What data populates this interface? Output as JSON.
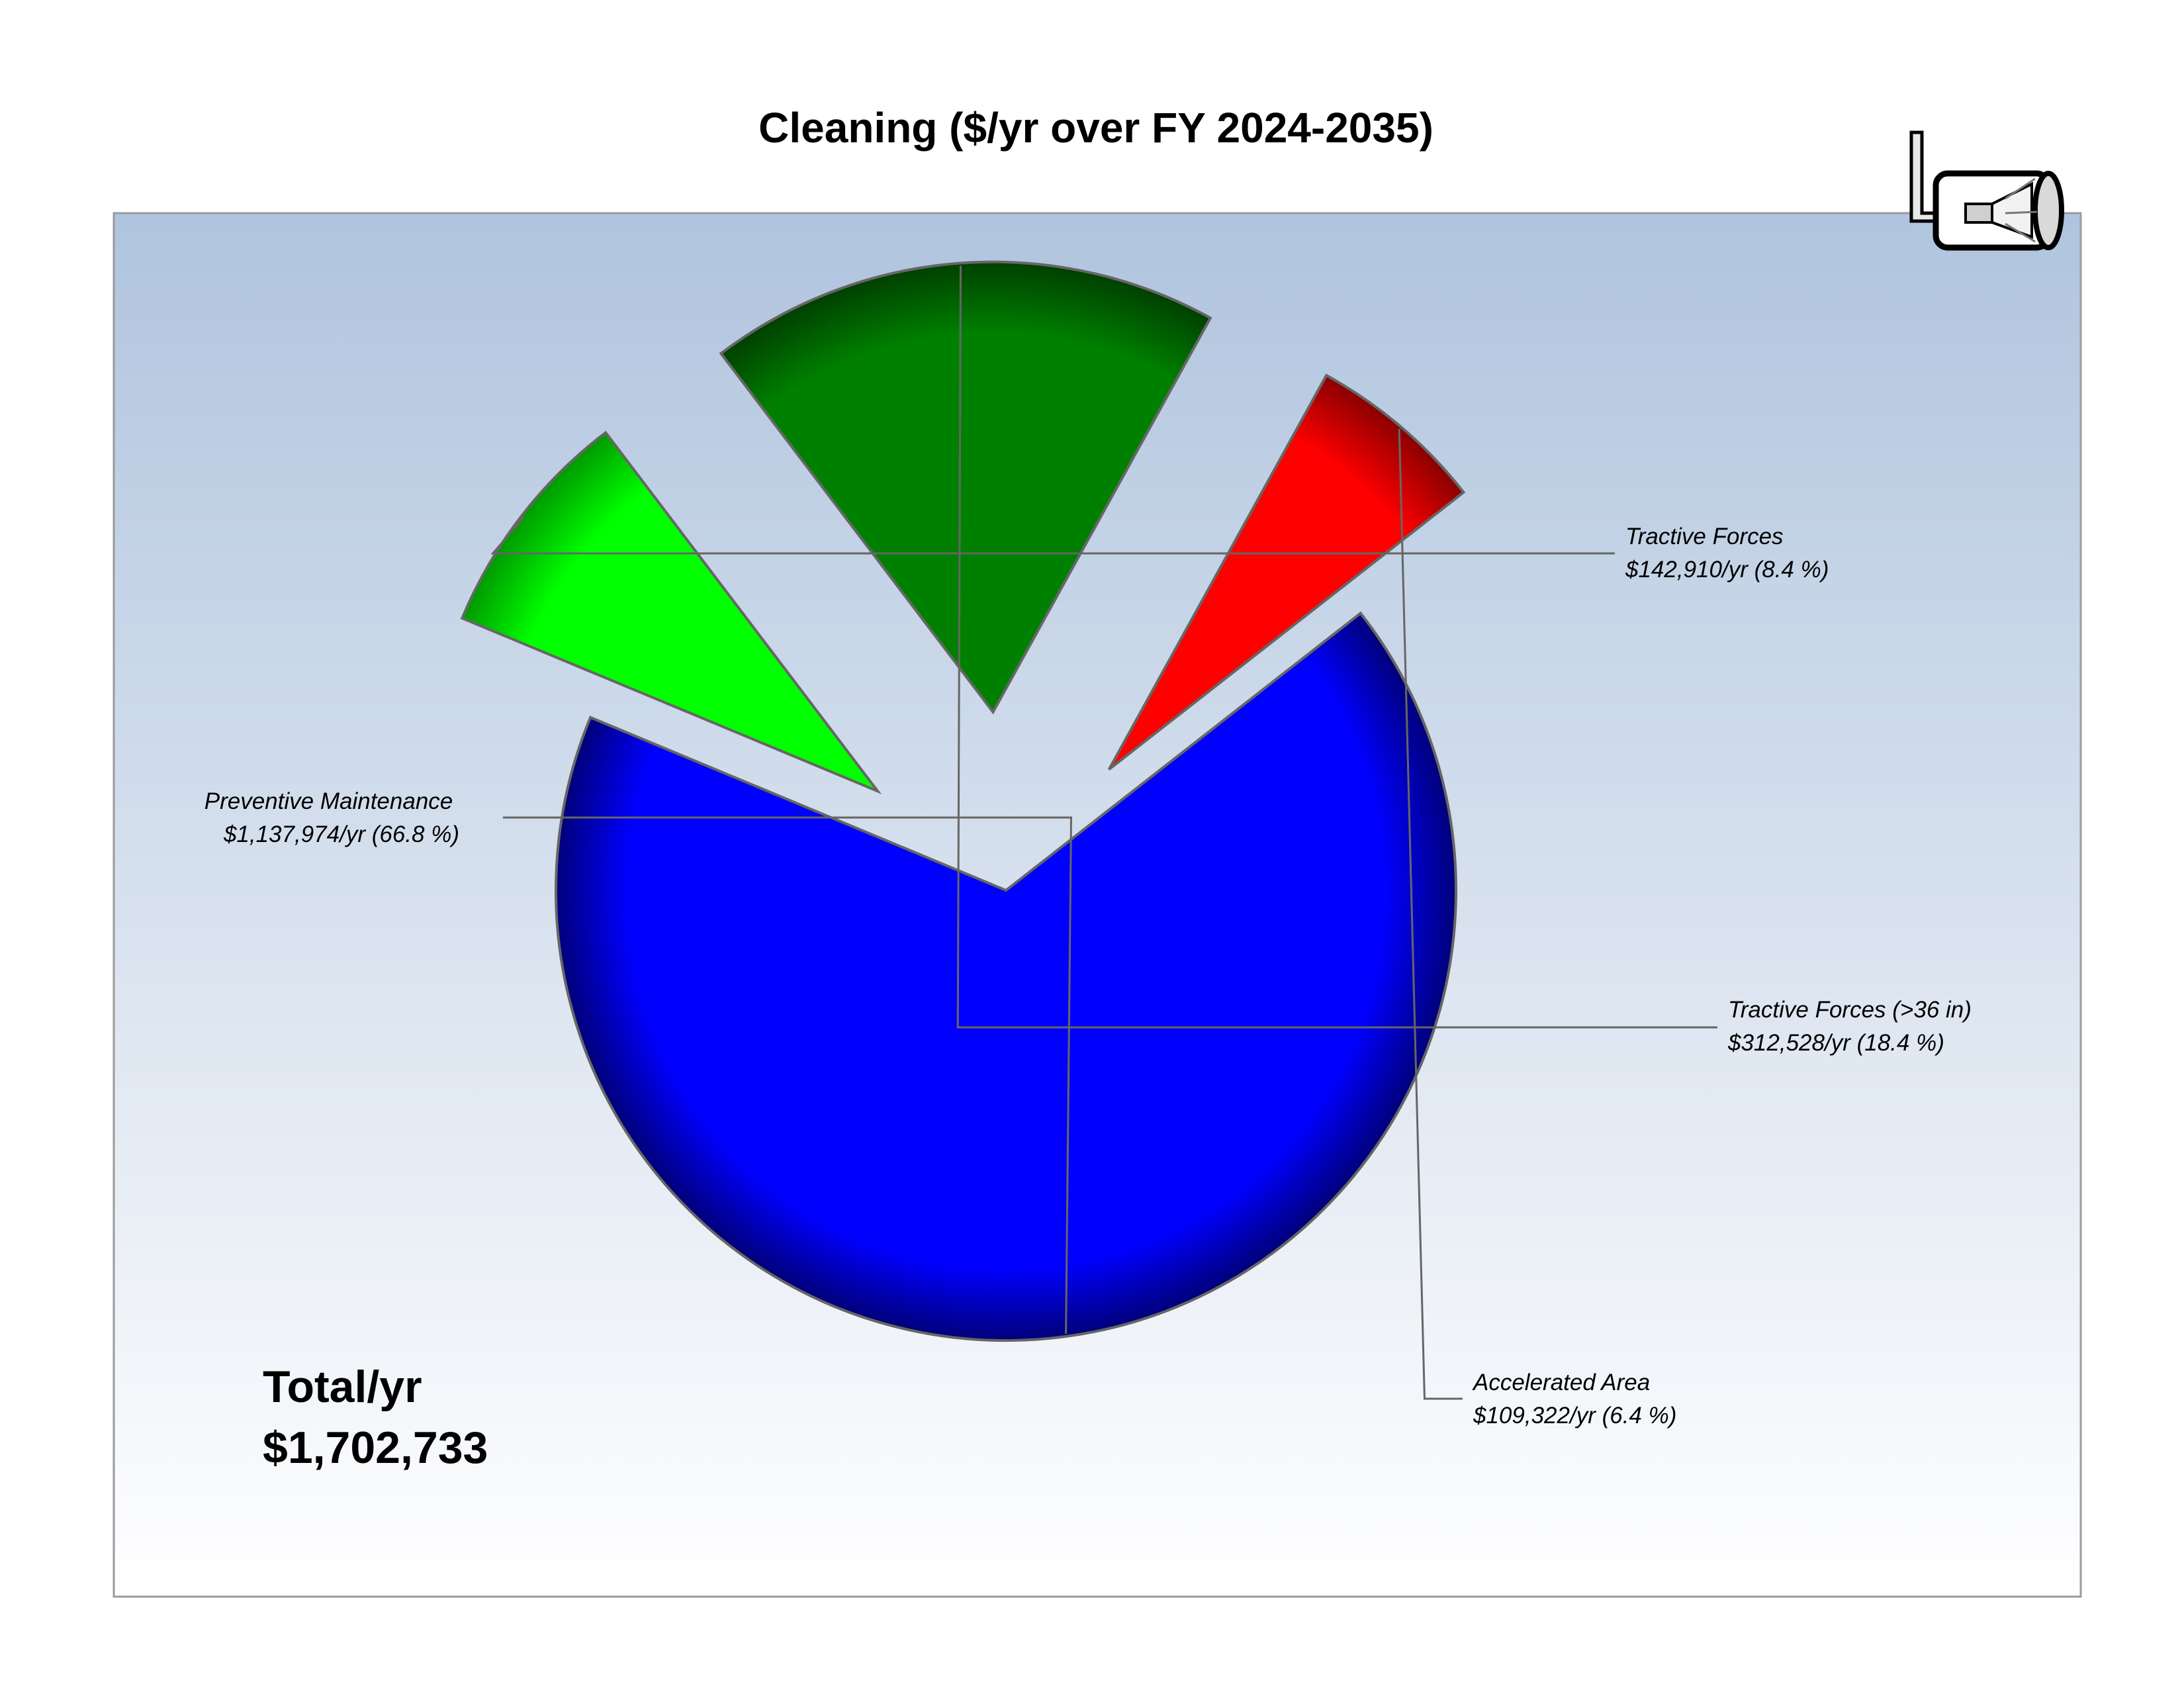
{
  "chart_data": {
    "type": "pie",
    "title": "Cleaning ($/yr over FY 2024-2035)",
    "total_label": "Total/yr",
    "total_value": "$1,702,733",
    "slices": [
      {
        "name": "Preventive Maintenance",
        "value": 1137974,
        "value_label": "$1,137,974/yr (66.8 %)",
        "color": "#0000ff",
        "dark": "#00007a"
      },
      {
        "name": "Tractive Forces",
        "value": 142910,
        "value_label": "$142,910/yr (8.4 %)",
        "color": "#00ff00",
        "dark": "#009a00"
      },
      {
        "name": "Tractive Forces (>36 in)",
        "value": 312528,
        "value_label": "$312,528/yr (18.4 %)",
        "color": "#008000",
        "dark": "#004000"
      },
      {
        "name": "Accelerated Area",
        "value": 109322,
        "value_label": "$109,322/yr (6.4 %)",
        "color": "#ff0000",
        "dark": "#8a0000"
      }
    ],
    "legend": "none",
    "grid": false
  },
  "icon": "cleaning-nozzle-pipe-icon",
  "colors": {
    "plot_top": "#b0c4de",
    "plot_bottom": "#ffffff",
    "outline": "#666666"
  }
}
